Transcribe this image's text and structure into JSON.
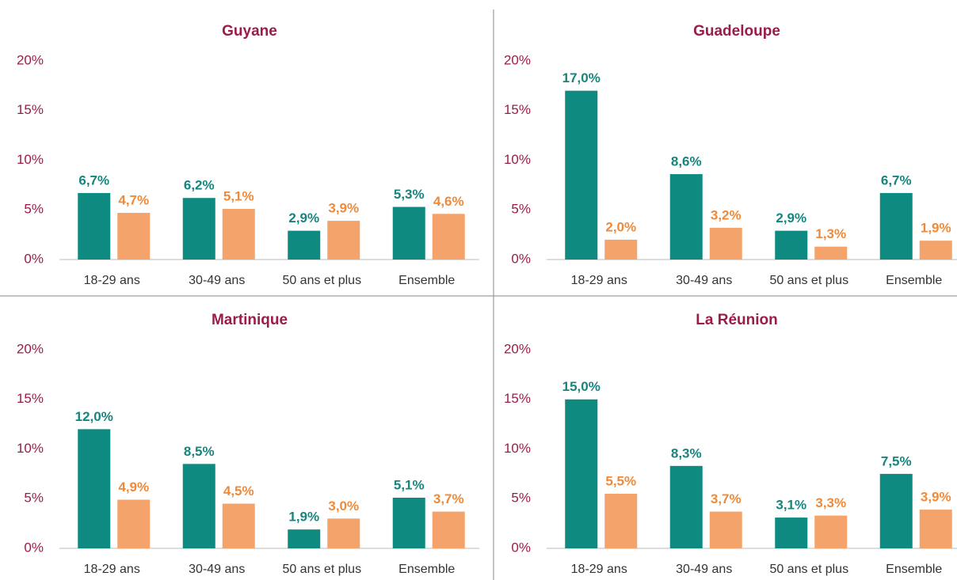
{
  "chart_data": [
    {
      "type": "bar",
      "title": "Guyane",
      "categories": [
        "18-29 ans",
        "30-49 ans",
        "50 ans et plus",
        "Ensemble"
      ],
      "series": [
        {
          "color": "#0f8a80",
          "label_color": "#17857e",
          "values": [
            6.7,
            6.2,
            2.9,
            5.3
          ],
          "value_labels": [
            "6,7%",
            "6,2%",
            "2,9%",
            "5,3%"
          ]
        },
        {
          "color": "#f4a46a",
          "label_color": "#ee8a3a",
          "values": [
            4.7,
            5.1,
            3.9,
            4.6
          ],
          "value_labels": [
            "4,7%",
            "5,1%",
            "3,9%",
            "4,6%"
          ]
        }
      ],
      "ylim": [
        0,
        20
      ],
      "yticks": [
        {
          "value": 0,
          "label": "0%"
        },
        {
          "value": 5,
          "label": "5%"
        },
        {
          "value": 10,
          "label": "10%"
        },
        {
          "value": 15,
          "label": "15%"
        },
        {
          "value": 20,
          "label": "20%"
        }
      ]
    },
    {
      "type": "bar",
      "title": "Guadeloupe",
      "categories": [
        "18-29 ans",
        "30-49 ans",
        "50 ans et plus",
        "Ensemble"
      ],
      "series": [
        {
          "color": "#0f8a80",
          "label_color": "#17857e",
          "values": [
            17.0,
            8.6,
            2.9,
            6.7
          ],
          "value_labels": [
            "17,0%",
            "8,6%",
            "2,9%",
            "6,7%"
          ]
        },
        {
          "color": "#f4a46a",
          "label_color": "#ee8a3a",
          "values": [
            2.0,
            3.2,
            1.3,
            1.9
          ],
          "value_labels": [
            "2,0%",
            "3,2%",
            "1,3%",
            "1,9%"
          ]
        }
      ],
      "ylim": [
        0,
        20
      ],
      "yticks": [
        {
          "value": 0,
          "label": "0%"
        },
        {
          "value": 5,
          "label": "5%"
        },
        {
          "value": 10,
          "label": "10%"
        },
        {
          "value": 15,
          "label": "15%"
        },
        {
          "value": 20,
          "label": "20%"
        }
      ]
    },
    {
      "type": "bar",
      "title": "Martinique",
      "categories": [
        "18-29 ans",
        "30-49 ans",
        "50 ans et plus",
        "Ensemble"
      ],
      "series": [
        {
          "color": "#0f8a80",
          "label_color": "#17857e",
          "values": [
            12.0,
            8.5,
            1.9,
            5.1
          ],
          "value_labels": [
            "12,0%",
            "8,5%",
            "1,9%",
            "5,1%"
          ]
        },
        {
          "color": "#f4a46a",
          "label_color": "#ee8a3a",
          "values": [
            4.9,
            4.5,
            3.0,
            3.7
          ],
          "value_labels": [
            "4,9%",
            "4,5%",
            "3,0%",
            "3,7%"
          ]
        }
      ],
      "ylim": [
        0,
        20
      ],
      "yticks": [
        {
          "value": 0,
          "label": "0%"
        },
        {
          "value": 5,
          "label": "5%"
        },
        {
          "value": 10,
          "label": "10%"
        },
        {
          "value": 15,
          "label": "15%"
        },
        {
          "value": 20,
          "label": "20%"
        }
      ]
    },
    {
      "type": "bar",
      "title": "La Réunion",
      "categories": [
        "18-29 ans",
        "30-49 ans",
        "50 ans et plus",
        "Ensemble"
      ],
      "series": [
        {
          "color": "#0f8a80",
          "label_color": "#17857e",
          "values": [
            15.0,
            8.3,
            3.1,
            7.5
          ],
          "value_labels": [
            "15,0%",
            "8,3%",
            "3,1%",
            "7,5%"
          ]
        },
        {
          "color": "#f4a46a",
          "label_color": "#ee8a3a",
          "values": [
            5.5,
            3.7,
            3.3,
            3.9
          ],
          "value_labels": [
            "5,5%",
            "3,7%",
            "3,3%",
            "3,9%"
          ]
        }
      ],
      "ylim": [
        0,
        20
      ],
      "yticks": [
        {
          "value": 0,
          "label": "0%"
        },
        {
          "value": 5,
          "label": "5%"
        },
        {
          "value": 10,
          "label": "10%"
        },
        {
          "value": 15,
          "label": "15%"
        },
        {
          "value": 20,
          "label": "20%"
        }
      ]
    }
  ]
}
